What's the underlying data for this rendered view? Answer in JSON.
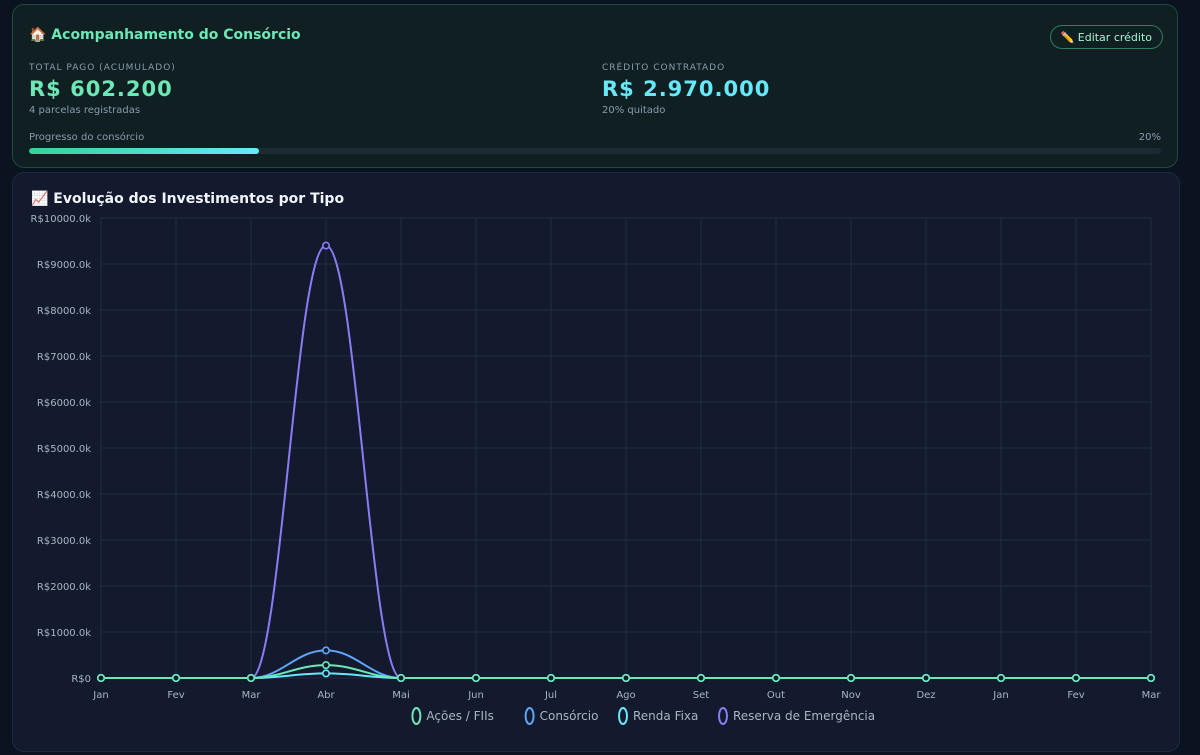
{
  "consorcio": {
    "title": "🏠 Acompanhamento do Consórcio",
    "edit_button": "✏️ Editar crédito",
    "total_pago": {
      "label": "TOTAL PAGO (ACUMULADO)",
      "value": "R$ 602.200",
      "sub": "4 parcelas registradas"
    },
    "credito": {
      "label": "CRÉDITO CONTRATADO",
      "value": "R$ 2.970.000",
      "sub": "20% quitado"
    },
    "progress": {
      "label": "Progresso do consórcio",
      "percent_text": "20%",
      "fraction": 0.203
    },
    "colors": {
      "total_value": "#6ee7b7",
      "credito_value": "#67e8f9"
    }
  },
  "chart_data": {
    "type": "line",
    "title": "📈 Evolução dos Investimentos por Tipo",
    "categories": [
      "Jan",
      "Fev",
      "Mar",
      "Abr",
      "Mai",
      "Jun",
      "Jul",
      "Ago",
      "Set",
      "Out",
      "Nov",
      "Dez",
      "Jan",
      "Fev",
      "Mar"
    ],
    "ylim": [
      0,
      10000
    ],
    "yticks": [
      0,
      1000,
      2000,
      3000,
      4000,
      5000,
      6000,
      7000,
      8000,
      9000,
      10000
    ],
    "ytick_labels": [
      "R$0",
      "R$1000.0k",
      "R$2000.0k",
      "R$3000.0k",
      "R$4000.0k",
      "R$5000.0k",
      "R$6000.0k",
      "R$7000.0k",
      "R$8000.0k",
      "R$9000.0k",
      "R$10000.0k"
    ],
    "grid": true,
    "legend_position": "bottom",
    "series": [
      {
        "name": "Ações / FIIs",
        "color": "#6ee7b7",
        "values": [
          0,
          0,
          0,
          280,
          0,
          0,
          0,
          0,
          0,
          0,
          0,
          0,
          0,
          0,
          0
        ]
      },
      {
        "name": "Consórcio",
        "color": "#60a5fa",
        "values": [
          0,
          0,
          0,
          600,
          0,
          0,
          0,
          0,
          0,
          0,
          0,
          0,
          0,
          0,
          0
        ]
      },
      {
        "name": "Renda Fixa",
        "color": "#67e8f9",
        "values": [
          0,
          0,
          0,
          100,
          0,
          0,
          0,
          0,
          0,
          0,
          0,
          0,
          0,
          0,
          0
        ]
      },
      {
        "name": "Reserva de Emergência",
        "color": "#8b7cf6",
        "values": [
          0,
          0,
          0,
          9400,
          0,
          0,
          0,
          0,
          0,
          0,
          0,
          0,
          0,
          0,
          0
        ]
      }
    ]
  }
}
